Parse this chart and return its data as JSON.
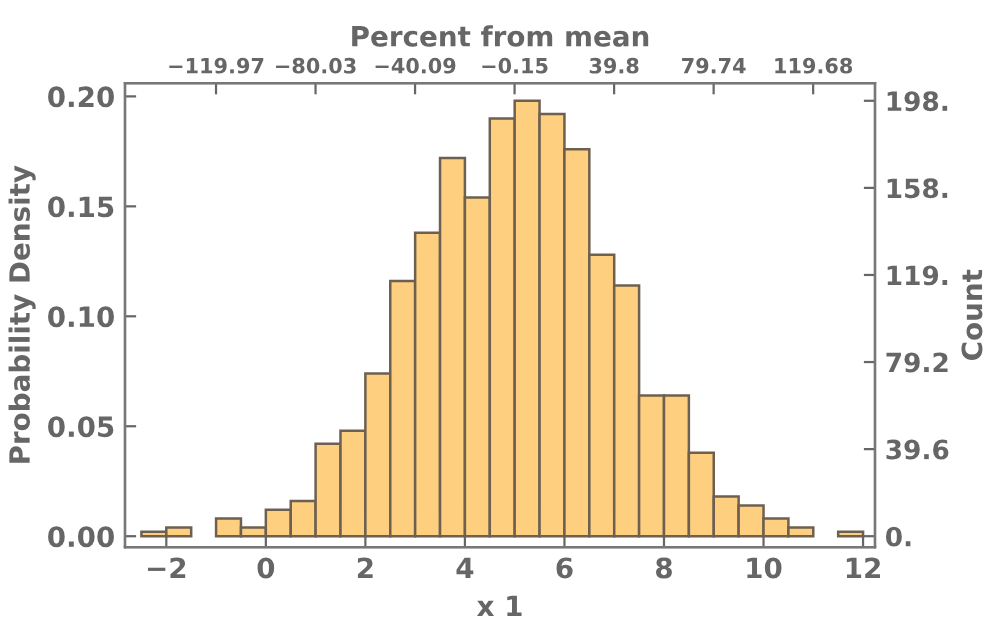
{
  "chart_data": {
    "type": "histogram",
    "xlabel": "x 1",
    "ylabel": "Probability Density",
    "y2label": "Count",
    "x2label": "Percent from mean",
    "bins": [
      -2.5,
      -2,
      -1.5,
      -1,
      -0.5,
      0,
      0.5,
      1,
      1.5,
      2,
      2.5,
      3,
      3.5,
      4,
      4.5,
      5,
      5.5,
      6,
      6.5,
      7,
      7.5,
      8,
      8.5,
      9,
      9.5,
      10,
      10.5,
      11,
      11.5,
      12
    ],
    "values": [
      0.002,
      0.004,
      0,
      0.008,
      0.004,
      0.012,
      0.016,
      0.042,
      0.048,
      0.074,
      0.116,
      0.138,
      0.172,
      0.154,
      0.19,
      0.198,
      0.192,
      0.176,
      0.128,
      0.114,
      0.064,
      0.064,
      0.038,
      0.018,
      0.014,
      0.008,
      0.004,
      0,
      0.002
    ],
    "color": "#fdcf7f",
    "xlim": [
      -2.83,
      12.24
    ],
    "xticks": [
      {
        "value": -2,
        "label": "−2"
      },
      0,
      2,
      4,
      6,
      8,
      10,
      12
    ],
    "ylim": [
      -0.005,
      0.206
    ],
    "yticks": [
      {
        "value": 0,
        "label": "0.00"
      },
      {
        "value": 0.05,
        "label": "0.05"
      },
      {
        "value": 0.1,
        "label": "0.10"
      },
      {
        "value": 0.15,
        "label": "0.15"
      },
      {
        "value": 0.2,
        "label": "0.20"
      }
    ],
    "y2lim": [
      -5,
      206
    ],
    "y2ticks": [
      {
        "value": 0,
        "label": "0."
      },
      39.6,
      79.2,
      {
        "value": 118.8,
        "label": "119."
      },
      {
        "value": 158.4,
        "label": "158."
      },
      {
        "value": 198,
        "label": "198."
      }
    ],
    "x2lim": [
      -156.5,
      144.5
    ],
    "x2ticks": [
      {
        "value": -119.97,
        "label": "−119.97"
      },
      {
        "value": -80.03,
        "label": "−80.03"
      },
      {
        "value": -40.09,
        "label": "−40.09"
      },
      {
        "value": -0.15,
        "label": "−0.15"
      },
      39.8,
      79.74,
      119.68
    ],
    "grid": false,
    "legend": false
  }
}
